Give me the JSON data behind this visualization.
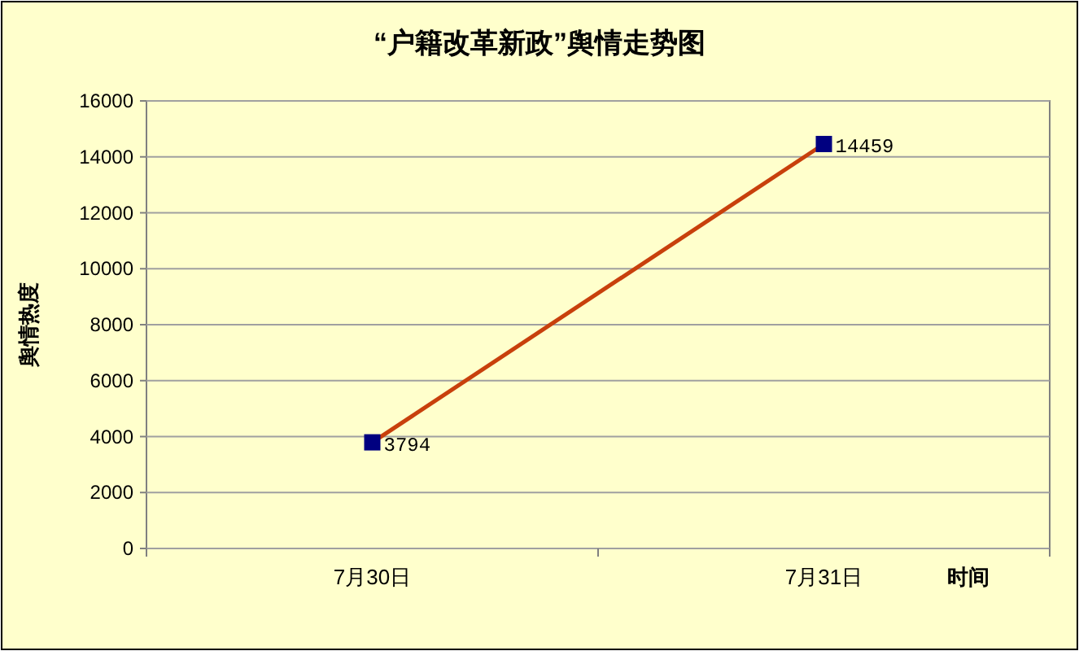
{
  "chart_data": {
    "type": "line",
    "title": "“户籍改革新政”舆情走势图",
    "xlabel": "时间",
    "ylabel": "舆情热度",
    "categories": [
      "7月30日",
      "7月31日"
    ],
    "series": [
      {
        "color": "#c8400c",
        "colors": [
          "#000080",
          "#000080"
        ],
        "values": [
          3794,
          14459
        ]
      }
    ],
    "ylim": [
      0,
      16000
    ],
    "yticks": [
      0,
      2000,
      4000,
      6000,
      8000,
      10000,
      12000,
      14000,
      16000
    ],
    "grid": "y",
    "marker": "square",
    "line_style": "solid",
    "data_labels": true
  }
}
